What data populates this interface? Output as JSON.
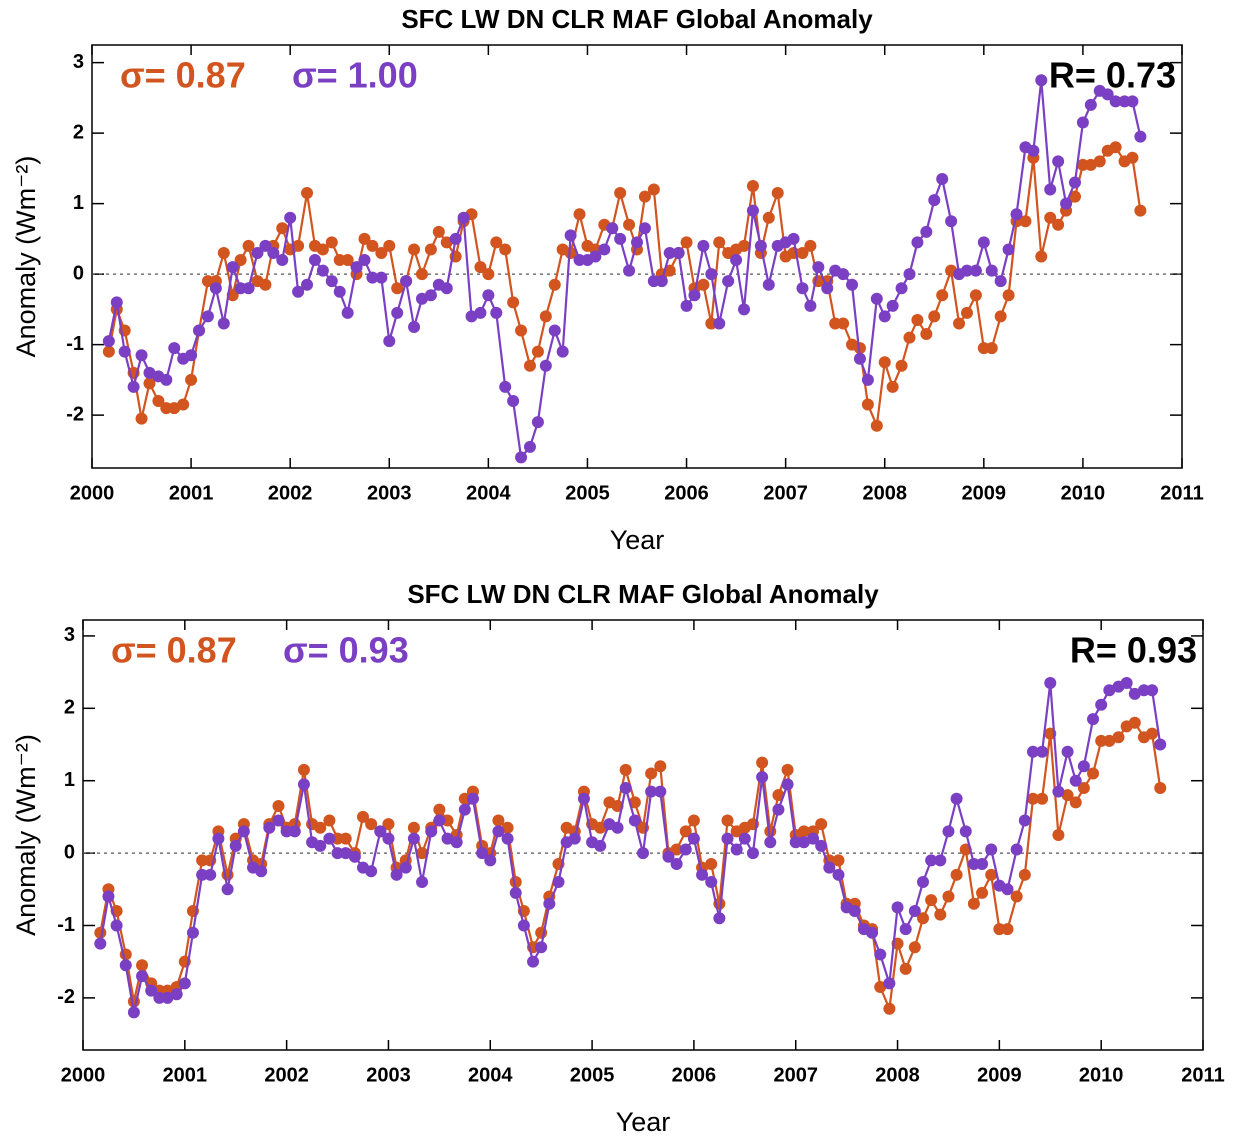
{
  "chart_data": [
    {
      "type": "line",
      "title": "SFC LW DN CLR MAF    Global Anomaly",
      "xlabel": "Year",
      "ylabel": "Anomaly (Wm⁻²)",
      "xlim": [
        2000,
        2011
      ],
      "ylim": [
        -2.75,
        3.25
      ],
      "xticks": [
        2000,
        2001,
        2002,
        2003,
        2004,
        2005,
        2006,
        2007,
        2008,
        2009,
        2010,
        2011
      ],
      "yticks": [
        -2,
        -1,
        0,
        1,
        2,
        3
      ],
      "reference_line": 0,
      "annotations": [
        {
          "text": "σ= 0.87",
          "color": "#d2541e"
        },
        {
          "text": "σ= 1.00",
          "color": "#7b3fc4"
        },
        {
          "text": "R= 0.73",
          "color": "#000000"
        }
      ],
      "x": [
        2000.17,
        2000.25,
        2000.33,
        2000.42,
        2000.5,
        2000.58,
        2000.67,
        2000.75,
        2000.83,
        2000.92,
        2001,
        2001.08,
        2001.17,
        2001.25,
        2001.33,
        2001.42,
        2001.5,
        2001.58,
        2001.67,
        2001.75,
        2001.83,
        2001.92,
        2002,
        2002.08,
        2002.17,
        2002.25,
        2002.33,
        2002.42,
        2002.5,
        2002.58,
        2002.67,
        2002.75,
        2002.83,
        2002.92,
        2003,
        2003.08,
        2003.17,
        2003.25,
        2003.33,
        2003.42,
        2003.5,
        2003.58,
        2003.67,
        2003.75,
        2003.83,
        2003.92,
        2004,
        2004.08,
        2004.17,
        2004.25,
        2004.33,
        2004.42,
        2004.5,
        2004.58,
        2004.67,
        2004.75,
        2004.83,
        2004.92,
        2005,
        2005.08,
        2005.17,
        2005.25,
        2005.33,
        2005.42,
        2005.5,
        2005.58,
        2005.67,
        2005.75,
        2005.83,
        2005.92,
        2006,
        2006.08,
        2006.17,
        2006.25,
        2006.33,
        2006.42,
        2006.5,
        2006.58,
        2006.67,
        2006.75,
        2006.83,
        2006.92,
        2007,
        2007.08,
        2007.17,
        2007.25,
        2007.33,
        2007.42,
        2007.5,
        2007.58,
        2007.67,
        2007.75,
        2007.83,
        2007.92,
        2008,
        2008.08,
        2008.17,
        2008.25,
        2008.33,
        2008.42,
        2008.5,
        2008.58,
        2008.67,
        2008.75,
        2008.83,
        2008.92,
        2009,
        2009.08,
        2009.17,
        2009.25,
        2009.33,
        2009.42,
        2009.5,
        2009.58,
        2009.67,
        2009.75,
        2009.83,
        2009.92,
        2010,
        2010.08,
        2010.17,
        2010.25,
        2010.33,
        2010.42,
        2010.5,
        2010.58
      ],
      "series": [
        {
          "color": "#d2541e",
          "values": [
            -1.1,
            -0.5,
            -0.8,
            -1.4,
            -2.05,
            -1.55,
            -1.8,
            -1.9,
            -1.9,
            -1.85,
            -1.5,
            -0.8,
            -0.1,
            -0.1,
            0.3,
            -0.3,
            0.2,
            0.4,
            -0.1,
            -0.15,
            0.4,
            0.65,
            0.35,
            0.4,
            1.15,
            0.4,
            0.35,
            0.45,
            0.2,
            0.2,
            0,
            0.5,
            0.4,
            0.3,
            0.4,
            -0.2,
            -0.1,
            0.35,
            0,
            0.35,
            0.6,
            0.45,
            0.25,
            0.75,
            0.85,
            0.1,
            0,
            0.45,
            0.35,
            -0.4,
            -0.8,
            -1.3,
            -1.1,
            -0.6,
            -0.15,
            0.35,
            0.3,
            0.85,
            0.4,
            0.35,
            0.7,
            0.65,
            1.15,
            0.7,
            0.35,
            1.1,
            1.2,
            0,
            0.05,
            0.3,
            0.45,
            -0.2,
            -0.15,
            -0.7,
            0.45,
            0.3,
            0.35,
            0.4,
            1.25,
            0.3,
            0.8,
            1.15,
            0.25,
            0.3,
            0.3,
            0.4,
            -0.1,
            -0.1,
            -0.7,
            -0.7,
            -1,
            -1.05,
            -1.85,
            -2.15,
            -1.25,
            -1.6,
            -1.3,
            -0.9,
            -0.65,
            -0.85,
            -0.6,
            -0.3,
            0.05,
            -0.7,
            -0.55,
            -0.3,
            -1.05,
            -1.05,
            -0.6,
            -0.3,
            0.75,
            0.75,
            1.65,
            0.25,
            0.8,
            0.7,
            0.9,
            1.1,
            1.55,
            1.55,
            1.6,
            1.75,
            1.8,
            1.6,
            1.65,
            0.9
          ]
        },
        {
          "color": "#7b3fc4",
          "values": [
            -0.95,
            -0.4,
            -1.1,
            -1.6,
            -1.15,
            -1.4,
            -1.45,
            -1.5,
            -1.05,
            -1.2,
            -1.15,
            -0.8,
            -0.6,
            -0.2,
            -0.7,
            0.1,
            -0.2,
            -0.2,
            0.3,
            0.4,
            0.3,
            0.2,
            0.8,
            -0.25,
            -0.15,
            0.2,
            0.05,
            -0.1,
            -0.25,
            -0.55,
            0.1,
            0.2,
            -0.05,
            -0.05,
            -0.95,
            -0.55,
            -0.1,
            -0.75,
            -0.35,
            -0.3,
            -0.15,
            -0.2,
            0.5,
            0.8,
            -0.6,
            -0.55,
            -0.3,
            -0.55,
            -1.6,
            -1.8,
            -2.6,
            -2.45,
            -2.1,
            -1.3,
            -0.8,
            -1.1,
            0.55,
            0.2,
            0.2,
            0.25,
            0.35,
            0.65,
            0.5,
            0.05,
            0.45,
            0.65,
            -0.1,
            -0.1,
            0.3,
            0.3,
            -0.45,
            -0.3,
            0.4,
            0,
            -0.7,
            -0.1,
            0.2,
            -0.5,
            0.9,
            0.4,
            -0.15,
            0.4,
            0.45,
            0.5,
            -0.2,
            -0.45,
            0.1,
            -0.2,
            0.05,
            0,
            -0.15,
            -1.2,
            -1.5,
            -0.35,
            -0.6,
            -0.45,
            -0.2,
            0,
            0.45,
            0.6,
            1.05,
            1.35,
            0.75,
            0,
            0.05,
            0.05,
            0.45,
            0.05,
            -0.1,
            0.35,
            0.85,
            1.8,
            1.75,
            2.75,
            1.2,
            1.6,
            1,
            1.3,
            2.15,
            2.4,
            2.6,
            2.55,
            2.45,
            2.45,
            2.45,
            1.95
          ]
        }
      ]
    },
    {
      "type": "line",
      "title": "SFC LW DN CLR MAF    Global Anomaly",
      "xlabel": "Year",
      "ylabel": "Anomaly (Wm⁻²)",
      "xlim": [
        2000,
        2011
      ],
      "ylim": [
        -2.72,
        3.22
      ],
      "xticks": [
        2000,
        2001,
        2002,
        2003,
        2004,
        2005,
        2006,
        2007,
        2008,
        2009,
        2010,
        2011
      ],
      "yticks": [
        -2,
        -1,
        0,
        1,
        2,
        3
      ],
      "reference_line": 0,
      "annotations": [
        {
          "text": "σ= 0.87",
          "color": "#d2541e"
        },
        {
          "text": "σ= 0.93",
          "color": "#7b3fc4"
        },
        {
          "text": "R= 0.93",
          "color": "#000000"
        }
      ],
      "x": [
        2000.17,
        2000.25,
        2000.33,
        2000.42,
        2000.5,
        2000.58,
        2000.67,
        2000.75,
        2000.83,
        2000.92,
        2001,
        2001.08,
        2001.17,
        2001.25,
        2001.33,
        2001.42,
        2001.5,
        2001.58,
        2001.67,
        2001.75,
        2001.83,
        2001.92,
        2002,
        2002.08,
        2002.17,
        2002.25,
        2002.33,
        2002.42,
        2002.5,
        2002.58,
        2002.67,
        2002.75,
        2002.83,
        2002.92,
        2003,
        2003.08,
        2003.17,
        2003.25,
        2003.33,
        2003.42,
        2003.5,
        2003.58,
        2003.67,
        2003.75,
        2003.83,
        2003.92,
        2004,
        2004.08,
        2004.17,
        2004.25,
        2004.33,
        2004.42,
        2004.5,
        2004.58,
        2004.67,
        2004.75,
        2004.83,
        2004.92,
        2005,
        2005.08,
        2005.17,
        2005.25,
        2005.33,
        2005.42,
        2005.5,
        2005.58,
        2005.67,
        2005.75,
        2005.83,
        2005.92,
        2006,
        2006.08,
        2006.17,
        2006.25,
        2006.33,
        2006.42,
        2006.5,
        2006.58,
        2006.67,
        2006.75,
        2006.83,
        2006.92,
        2007,
        2007.08,
        2007.17,
        2007.25,
        2007.33,
        2007.42,
        2007.5,
        2007.58,
        2007.67,
        2007.75,
        2007.83,
        2007.92,
        2008,
        2008.08,
        2008.17,
        2008.25,
        2008.33,
        2008.42,
        2008.5,
        2008.58,
        2008.67,
        2008.75,
        2008.83,
        2008.92,
        2009,
        2009.08,
        2009.17,
        2009.25,
        2009.33,
        2009.42,
        2009.5,
        2009.58,
        2009.67,
        2009.75,
        2009.83,
        2009.92,
        2010,
        2010.08,
        2010.17,
        2010.25,
        2010.33,
        2010.42,
        2010.5,
        2010.58
      ],
      "series": [
        {
          "color": "#d2541e",
          "values": [
            -1.1,
            -0.5,
            -0.8,
            -1.4,
            -2.05,
            -1.55,
            -1.8,
            -1.9,
            -1.9,
            -1.85,
            -1.5,
            -0.8,
            -0.1,
            -0.1,
            0.3,
            -0.3,
            0.2,
            0.4,
            -0.1,
            -0.15,
            0.4,
            0.65,
            0.35,
            0.4,
            1.15,
            0.4,
            0.35,
            0.45,
            0.2,
            0.2,
            0,
            0.5,
            0.4,
            0.3,
            0.4,
            -0.2,
            -0.1,
            0.35,
            0,
            0.35,
            0.6,
            0.45,
            0.25,
            0.75,
            0.85,
            0.1,
            0,
            0.45,
            0.35,
            -0.4,
            -0.8,
            -1.3,
            -1.1,
            -0.6,
            -0.15,
            0.35,
            0.3,
            0.85,
            0.4,
            0.35,
            0.7,
            0.65,
            1.15,
            0.7,
            0.35,
            1.1,
            1.2,
            0,
            0.05,
            0.3,
            0.45,
            -0.2,
            -0.15,
            -0.7,
            0.45,
            0.3,
            0.35,
            0.4,
            1.25,
            0.3,
            0.8,
            1.15,
            0.25,
            0.3,
            0.3,
            0.4,
            -0.1,
            -0.1,
            -0.7,
            -0.7,
            -1,
            -1.05,
            -1.85,
            -2.15,
            -1.25,
            -1.6,
            -1.3,
            -0.9,
            -0.65,
            -0.85,
            -0.6,
            -0.3,
            0.05,
            -0.7,
            -0.55,
            -0.3,
            -1.05,
            -1.05,
            -0.6,
            -0.3,
            0.75,
            0.75,
            1.65,
            0.25,
            0.8,
            0.7,
            0.9,
            1.1,
            1.55,
            1.55,
            1.6,
            1.75,
            1.8,
            1.6,
            1.65,
            0.9
          ]
        },
        {
          "color": "#7b3fc4",
          "values": [
            -1.25,
            -0.6,
            -1,
            -1.55,
            -2.2,
            -1.7,
            -1.9,
            -2,
            -2,
            -1.95,
            -1.8,
            -1.1,
            -0.3,
            -0.3,
            0.2,
            -0.5,
            0.1,
            0.3,
            -0.2,
            -0.25,
            0.35,
            0.45,
            0.3,
            0.3,
            0.95,
            0.15,
            0.1,
            0.2,
            0,
            0,
            -0.05,
            -0.2,
            -0.25,
            0.3,
            0.2,
            -0.3,
            -0.2,
            0.2,
            -0.4,
            0.3,
            0.45,
            0.2,
            0.15,
            0.6,
            0.75,
            0,
            -0.1,
            0.3,
            0.2,
            -0.55,
            -1,
            -1.5,
            -1.3,
            -0.7,
            -0.4,
            0.15,
            0.2,
            0.75,
            0.15,
            0.1,
            0.4,
            0.35,
            0.9,
            0.45,
            0,
            0.85,
            0.85,
            -0.05,
            -0.15,
            0.05,
            0.2,
            -0.3,
            -0.4,
            -0.9,
            0.2,
            0.05,
            0.2,
            0,
            1.05,
            0.15,
            0.6,
            0.95,
            0.15,
            0.15,
            0.2,
            0.1,
            -0.2,
            -0.3,
            -0.75,
            -0.8,
            -1.05,
            -1.1,
            -1.4,
            -1.8,
            -0.75,
            -1.05,
            -0.8,
            -0.4,
            -0.1,
            -0.1,
            0.3,
            0.75,
            0.3,
            -0.15,
            -0.15,
            0.05,
            -0.45,
            -0.5,
            0.05,
            0.45,
            1.4,
            1.4,
            2.35,
            0.85,
            1.4,
            1,
            1.2,
            1.85,
            2.05,
            2.25,
            2.3,
            2.35,
            2.2,
            2.25,
            2.25,
            1.5
          ]
        }
      ]
    }
  ]
}
